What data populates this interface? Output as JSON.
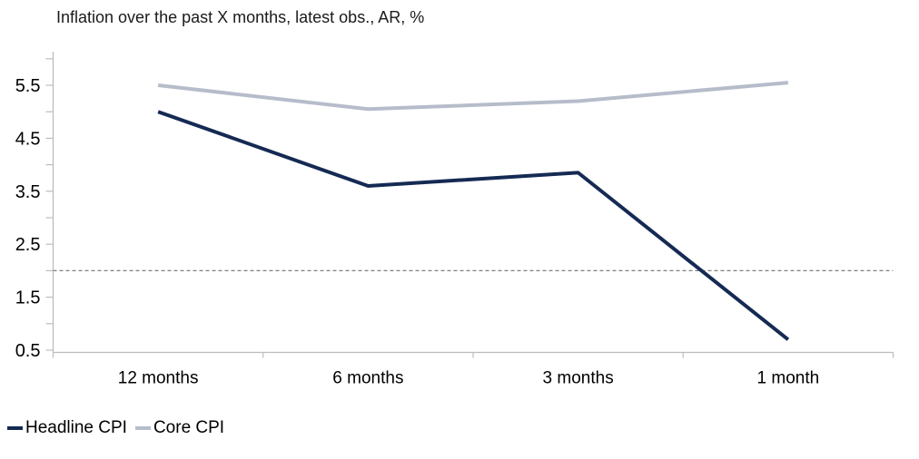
{
  "title": "Inflation over the past X months, latest obs., AR, %",
  "chart_data": {
    "type": "line",
    "categories": [
      "12 months",
      "6 months",
      "3 months",
      "1 month"
    ],
    "series": [
      {
        "name": "Headline CPI",
        "color": "#152a53",
        "values": [
          5.0,
          3.6,
          3.85,
          0.7
        ]
      },
      {
        "name": "Core CPI",
        "color": "#b6bcca",
        "values": [
          5.5,
          5.05,
          5.2,
          5.55
        ]
      }
    ],
    "reference_line": {
      "value": 2.0,
      "style": "dashed",
      "color": "#7f7f7f"
    },
    "ytick_min": 0.5,
    "ytick_max": 6.0,
    "ytick_step": 0.5,
    "yticks_labeled": [
      0.5,
      1.5,
      2.5,
      3.5,
      4.5,
      5.5
    ],
    "ylim": [
      0.45,
      6.1
    ],
    "grid": false,
    "legend_position": "bottom-left"
  },
  "colors": {
    "axis": "#bdbdbd",
    "tick_label": "#000000",
    "title_text": "#1a1a1a"
  }
}
